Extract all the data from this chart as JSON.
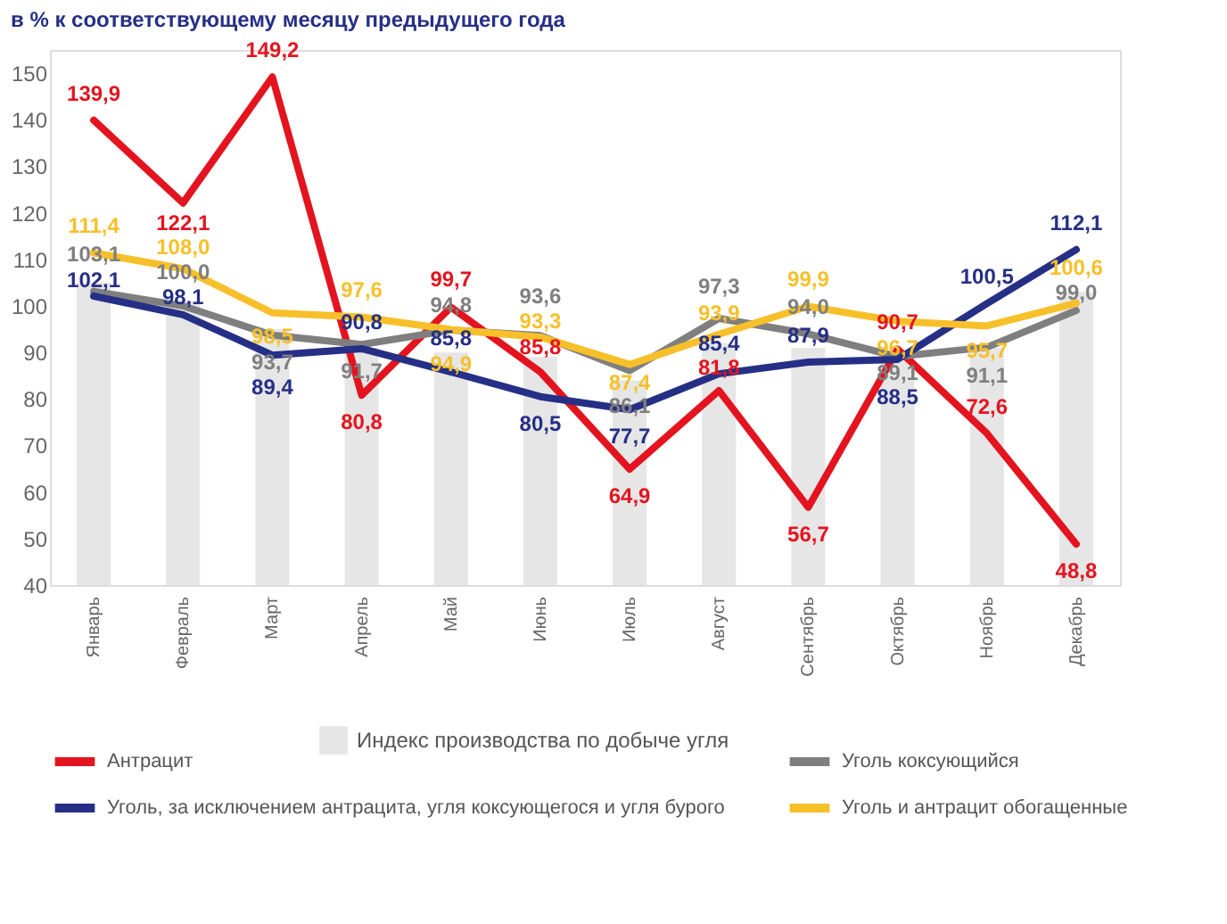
{
  "chart_data": {
    "type": "line",
    "title": "в % к соответствующему месяцу предыдущего года",
    "categories": [
      "Январь",
      "Февраль",
      "Март",
      "Апрель",
      "Май",
      "Июнь",
      "Июль",
      "Август",
      "Сентябрь",
      "Октябрь",
      "Ноябрь",
      "Декабрь"
    ],
    "series": [
      {
        "name": "Индекс производства по добыче угля",
        "type": "bar",
        "color": "#e6e6e6",
        "values": [
          105,
          101,
          95,
          91,
          90,
          89,
          84,
          92,
          91,
          90,
          91,
          103
        ]
      },
      {
        "name": "Антрацит",
        "color": "#e3141f",
        "values": [
          139.9,
          122.1,
          149.2,
          80.8,
          99.7,
          85.8,
          64.9,
          81.8,
          56.7,
          90.7,
          72.6,
          48.8
        ],
        "value_labels": [
          "139,9",
          "122,1",
          "149,2",
          "80,8",
          "99,7",
          "85,8",
          "64,9",
          "81,8",
          "56,7",
          "90,7",
          "72,6",
          "48,8"
        ]
      },
      {
        "name": "Уголь коксующийся",
        "color": "#7f7f7f",
        "values": [
          103.1,
          100.0,
          93.7,
          91.7,
          94.8,
          93.6,
          86.1,
          97.3,
          94.0,
          89.1,
          91.1,
          99.0
        ],
        "value_labels": [
          "103,1",
          "100,0",
          "93,7",
          "91,7",
          "94,8",
          "93,6",
          "86,1",
          "97,3",
          "94,0",
          "89,1",
          "91,1",
          "99,0"
        ]
      },
      {
        "name": "Уголь, за исключением антрацита, угля коксующегося и угля бурого",
        "color": "#262f86",
        "values": [
          102.1,
          98.1,
          89.4,
          90.8,
          85.8,
          80.5,
          77.7,
          85.4,
          87.9,
          88.5,
          100.5,
          112.1
        ],
        "value_labels": [
          "102,1",
          "98,1",
          "89,4",
          "90,8",
          "85,8",
          "80,5",
          "77,7",
          "85,4",
          "87,9",
          "88,5",
          "100,5",
          "112,1"
        ]
      },
      {
        "name": "Уголь и антрацит обогащенные",
        "color": "#f7c02a",
        "values": [
          111.4,
          108.0,
          98.5,
          97.6,
          94.9,
          93.3,
          87.4,
          93.9,
          99.9,
          96.7,
          95.7,
          100.6
        ],
        "value_labels": [
          "111,4",
          "108,0",
          "98,5",
          "97,6",
          "94,9",
          "93,3",
          "87,4",
          "93,9",
          "99,9",
          "96,7",
          "95,7",
          "100,6"
        ]
      }
    ],
    "ylim": [
      40,
      155
    ],
    "yticks": [
      40,
      50,
      60,
      70,
      80,
      90,
      100,
      110,
      120,
      130,
      140,
      150
    ],
    "grid": false,
    "legend": "bottom"
  }
}
